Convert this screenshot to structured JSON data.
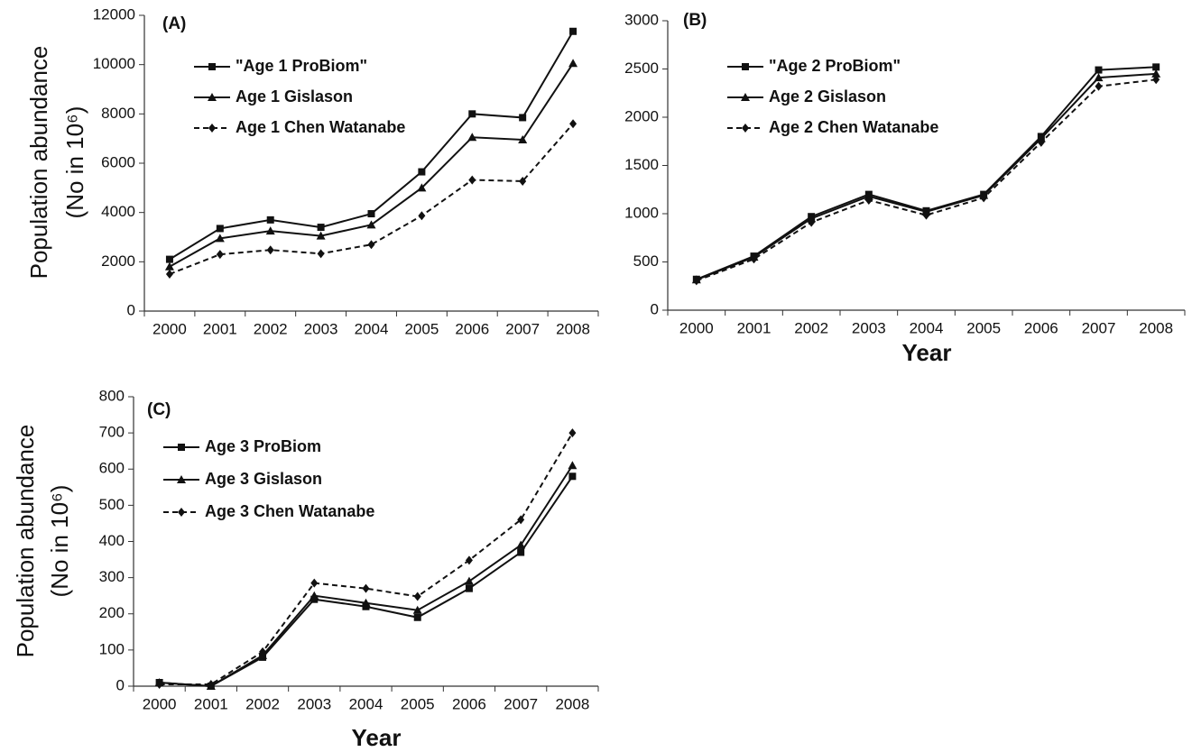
{
  "chart_data": [
    {
      "type": "line",
      "panel_label": "(A)",
      "y_label": [
        "Population abundance",
        "(No in 10⁶)"
      ],
      "categories": [
        "2000",
        "2001",
        "2002",
        "2003",
        "2004",
        "2005",
        "2006",
        "2007",
        "2008"
      ],
      "ylim": [
        0,
        12000
      ],
      "yticks": [
        0,
        2000,
        4000,
        6000,
        8000,
        10000,
        12000
      ],
      "series": [
        {
          "name": "\"Age 1 ProBiom\"",
          "color": "#111111",
          "marker": "square",
          "dashed": false,
          "values": [
            2100,
            3350,
            3700,
            3400,
            3950,
            5650,
            8000,
            7850,
            11350
          ]
        },
        {
          "name": "Age 1 Gislason",
          "color": "#111111",
          "marker": "triangle",
          "dashed": false,
          "values": [
            1800,
            2950,
            3250,
            3050,
            3500,
            5000,
            7050,
            6950,
            10050
          ]
        },
        {
          "name": "Age 1 Chen Watanabe",
          "color": "#111111",
          "marker": "diamond",
          "dashed": true,
          "values": [
            1500,
            2300,
            2480,
            2330,
            2700,
            3870,
            5320,
            5270,
            7600
          ]
        }
      ]
    },
    {
      "type": "line",
      "panel_label": "(B)",
      "x_label": "Year",
      "categories": [
        "2000",
        "2001",
        "2002",
        "2003",
        "2004",
        "2005",
        "2006",
        "2007",
        "2008"
      ],
      "ylim": [
        0,
        3000
      ],
      "yticks": [
        0,
        500,
        1000,
        1500,
        2000,
        2500,
        3000
      ],
      "series": [
        {
          "name": "\"Age 2 ProBiom\"",
          "color": "#111111",
          "marker": "square",
          "dashed": false,
          "values": [
            320,
            560,
            970,
            1200,
            1030,
            1200,
            1800,
            2490,
            2520
          ]
        },
        {
          "name": "Age 2 Gislason",
          "color": "#111111",
          "marker": "triangle",
          "dashed": false,
          "values": [
            315,
            550,
            950,
            1180,
            1020,
            1190,
            1780,
            2410,
            2450
          ]
        },
        {
          "name": "Age 2 Chen Watanabe",
          "color": "#111111",
          "marker": "diamond",
          "dashed": true,
          "values": [
            305,
            530,
            910,
            1140,
            985,
            1165,
            1740,
            2320,
            2390
          ]
        }
      ]
    },
    {
      "type": "line",
      "panel_label": "(C)",
      "x_label": "Year",
      "y_label": [
        "Population abundance",
        "(No in 10⁶)"
      ],
      "categories": [
        "2000",
        "2001",
        "2002",
        "2003",
        "2004",
        "2005",
        "2006",
        "2007",
        "2008"
      ],
      "ylim": [
        0,
        800
      ],
      "yticks": [
        0,
        100,
        200,
        300,
        400,
        500,
        600,
        700,
        800
      ],
      "series": [
        {
          "name": "Age 3 ProBiom",
          "color": "#111111",
          "marker": "square",
          "dashed": false,
          "values": [
            10,
            0,
            80,
            240,
            220,
            190,
            270,
            370,
            580
          ]
        },
        {
          "name": "Age 3 Gislason",
          "color": "#111111",
          "marker": "triangle",
          "dashed": false,
          "values": [
            10,
            0,
            85,
            250,
            230,
            210,
            290,
            390,
            610
          ]
        },
        {
          "name": "Age 3 Chen Watanabe",
          "color": "#111111",
          "marker": "diamond",
          "dashed": true,
          "values": [
            5,
            5,
            95,
            285,
            270,
            248,
            348,
            460,
            700
          ]
        }
      ]
    }
  ]
}
